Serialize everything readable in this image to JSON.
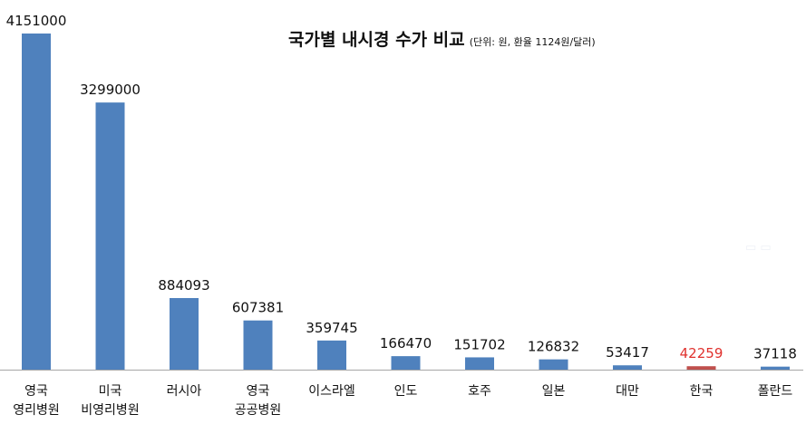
{
  "chart_data": {
    "type": "bar",
    "title": "국가별 내시경 수가 비교",
    "subtitle": "(단위: 원, 환율 1124원/달러)",
    "categories": [
      [
        "영국",
        "영리병원"
      ],
      [
        "미국",
        "비영리병원"
      ],
      [
        "러시아"
      ],
      [
        "영국",
        "공공병원"
      ],
      [
        "이스라엘"
      ],
      [
        "인도"
      ],
      [
        "호주"
      ],
      [
        "일본"
      ],
      [
        "대만"
      ],
      [
        "한국"
      ],
      [
        "폴란드"
      ]
    ],
    "values": [
      4151000,
      3299000,
      884093,
      607381,
      359745,
      166470,
      151702,
      126832,
      53417,
      42259,
      37118
    ],
    "value_labels": [
      "4151000",
      "3299000",
      "884093",
      "607381",
      "359745",
      "166470",
      "151702",
      "126832",
      "53417",
      "42259",
      "37118"
    ],
    "highlight_index": 9,
    "ylim": [
      0,
      4151000
    ],
    "grid": false,
    "legend": "none",
    "colors": {
      "bar": "#4f81bd",
      "highlight_bar": "#c0504d",
      "highlight_label": "#e0312d",
      "axis": "#a6a6a6"
    }
  }
}
